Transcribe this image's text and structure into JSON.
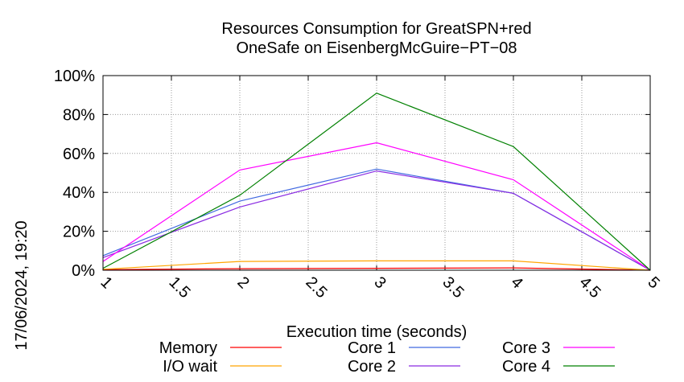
{
  "chart_data": {
    "type": "line",
    "title": "Resources Consumption for GreatSPN+red",
    "subtitle": "OneSafe on EisenbergMcGuire−PT−08",
    "xlabel": "Execution time (seconds)",
    "ylabel": "",
    "timestamp": "17/06/2024, 19:20",
    "xlim": [
      1,
      5
    ],
    "ylim": [
      0,
      100
    ],
    "x_ticks": [
      "1",
      "1.5",
      "2",
      "2.5",
      "3",
      "3.5",
      "4",
      "4.5",
      "5"
    ],
    "y_ticks": [
      "0%",
      "20%",
      "40%",
      "60%",
      "80%",
      "100%"
    ],
    "grid": true,
    "legend_position": "bottom",
    "x": [
      1,
      2,
      3,
      4,
      5
    ],
    "series": [
      {
        "name": "Memory",
        "color": "#ff0000",
        "values": [
          0.3,
          0.8,
          1.0,
          1.2,
          0
        ]
      },
      {
        "name": "I/O wait",
        "color": "#ffa500",
        "values": [
          0.5,
          4.5,
          4.8,
          4.8,
          0
        ]
      },
      {
        "name": "Core 1",
        "color": "#4169e1",
        "values": [
          7.5,
          35.5,
          52.0,
          39.5,
          0
        ]
      },
      {
        "name": "Core 2",
        "color": "#8a2be2",
        "values": [
          6.5,
          32.5,
          51.0,
          39.5,
          0
        ]
      },
      {
        "name": "Core 3",
        "color": "#ff00ff",
        "values": [
          4.5,
          51.5,
          65.5,
          46.5,
          0
        ]
      },
      {
        "name": "Core 4",
        "color": "#008000",
        "values": [
          1.0,
          38.5,
          91.0,
          63.5,
          0
        ]
      }
    ]
  }
}
